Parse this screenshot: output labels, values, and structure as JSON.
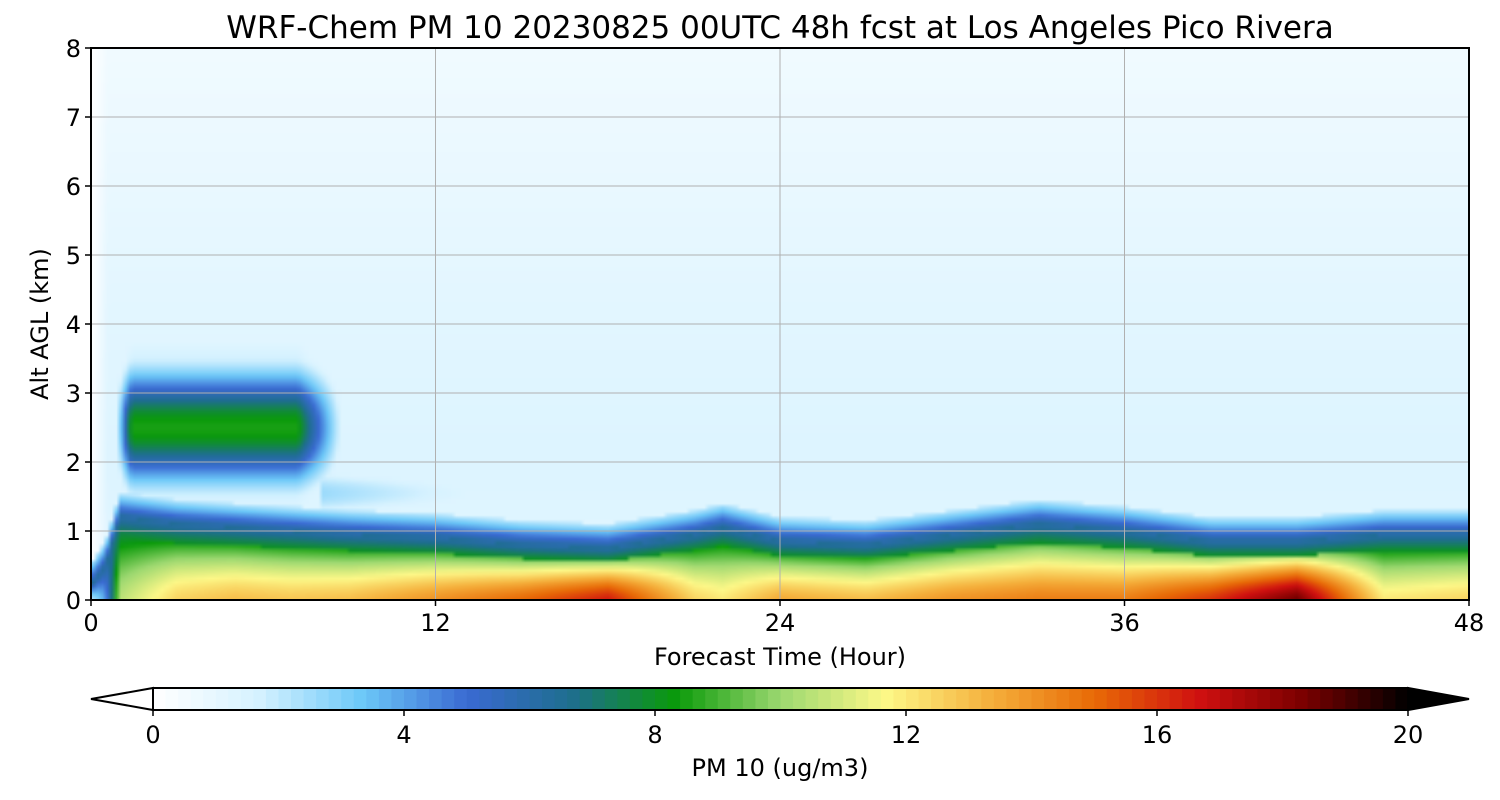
{
  "chart_data": {
    "type": "heatmap",
    "title": "WRF-Chem PM 10  20230825 00UTC 48h fcst at Los Angeles Pico Rivera",
    "xlabel": "Forecast Time (Hour)",
    "ylabel": "Alt AGL (km)",
    "xlim": [
      0,
      48
    ],
    "ylim": [
      0,
      8
    ],
    "xticks": [
      "0",
      "12",
      "24",
      "36",
      "48"
    ],
    "yticks": [
      "0",
      "1",
      "2",
      "3",
      "4",
      "5",
      "6",
      "7",
      "8"
    ],
    "grid": true,
    "colorbar": {
      "label": "PM 10  (ug/m3)",
      "ticks": [
        "0",
        "4",
        "8",
        "12",
        "16",
        "20"
      ],
      "range": [
        0,
        20
      ],
      "extend": "both",
      "colors": [
        "#ffffff",
        "#d6f2ff",
        "#6cc8f8",
        "#3a6ad2",
        "#1e6e8e",
        "#0a9a0a",
        "#9cd870",
        "#fdf888",
        "#f5b03c",
        "#e86a06",
        "#d01010",
        "#7a0000",
        "#000000"
      ]
    },
    "fields": {
      "hours": [
        0,
        0.5,
        1,
        3,
        5,
        7,
        9,
        12,
        15,
        18,
        21,
        22,
        24,
        27,
        30,
        33,
        36,
        39,
        42,
        45,
        48
      ],
      "background_by_altitude_km": {
        "alt": [
          0,
          2,
          4,
          6,
          8
        ],
        "pm10": [
          1.2,
          1.4,
          1.2,
          0.9,
          0.6
        ]
      },
      "surface_concentration": [
        2.0,
        4.0,
        10.5,
        12.5,
        13.0,
        12.8,
        13.0,
        14.0,
        15.0,
        16.5,
        12.5,
        12.0,
        13.5,
        13.0,
        14.0,
        14.5,
        14.5,
        16.0,
        18.5,
        12.0,
        12.5
      ],
      "boundary_layer_top_km": [
        0.2,
        0.5,
        1.2,
        1.1,
        1.05,
        1.0,
        0.95,
        0.9,
        0.8,
        0.75,
        0.95,
        1.05,
        0.85,
        0.8,
        0.95,
        1.1,
        1.0,
        0.85,
        0.85,
        0.95,
        0.95
      ],
      "elevated_layer": {
        "hour_start": 0.8,
        "hour_end": 8.5,
        "alt_center_km": 2.5,
        "peak_pm10": 8.5
      },
      "upper_plume_max": 2.0
    }
  }
}
